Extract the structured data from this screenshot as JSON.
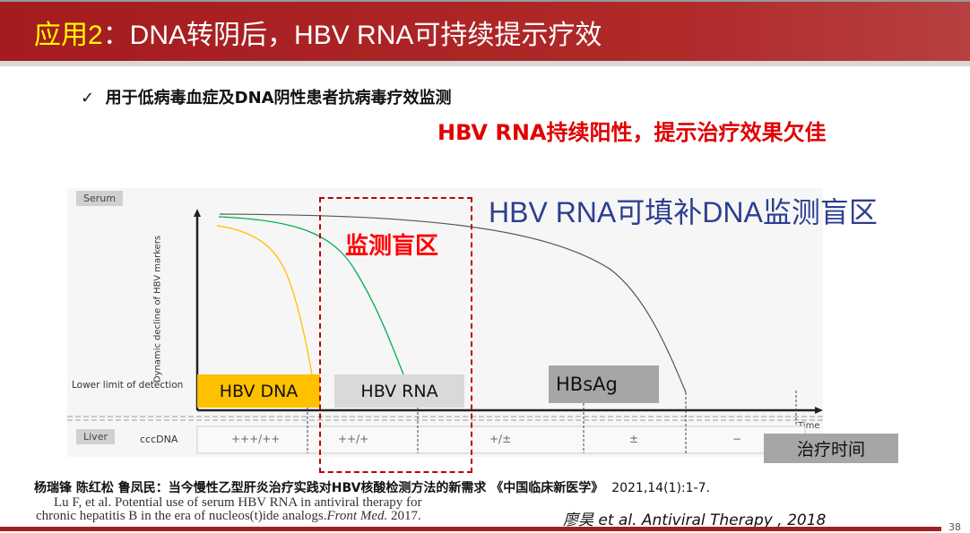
{
  "header": {
    "title_prefix": "应用2",
    "title_main": "：DNA转阴后，HBV RNA可持续提示疗效"
  },
  "bullet": {
    "icon": "check-icon",
    "text": "用于低病毒血症及DNA阴性患者抗病毒疗效监测"
  },
  "conclusion": "HBV RNA持续阳性，提示治疗效果欠佳",
  "diagram": {
    "serum_label": "Serum",
    "liver_label": "Liver",
    "y_axis_label": "Dynamic decline of HBV markers",
    "lower_limit_label": "Lower limit of detection",
    "x_axis_label": "Time",
    "cccdna_label": "cccDNA",
    "cccdna_levels": [
      "+++/++",
      "++/+",
      "+/±",
      "±",
      "−"
    ],
    "markers": {
      "dna": "HBV DNA",
      "rna": "HBV RNA",
      "hbsag": "HBsAg"
    },
    "blind_zone_label": "监测盲区",
    "fill_note": "HBV RNA可填补DNA监测盲区",
    "time_label": "治疗时间",
    "colors": {
      "dna": "#ffc000",
      "rna": "#00b050",
      "hbsag": "#555555",
      "blind_zone": "#c00000"
    }
  },
  "references": {
    "chinese": "杨瑞锋 陈红松 鲁凤民：当今慢性乙型肝炎治疗实践对HBV核酸检测方法的新需求 《中国临床新医学》",
    "chinese_cite": "2021,14(1):1-7.",
    "lu_line1": "Lu F, et al. Potential use of serum HBV RNA in antiviral therapy for",
    "lu_line2": "chronic hepatitis B in the era of nucleos(t)ide analogs.",
    "lu_journal": "Front Med.",
    "lu_year": "2017.",
    "liao": "廖昊 et al. Antiviral Therapy , 2018"
  },
  "page_number": "38"
}
